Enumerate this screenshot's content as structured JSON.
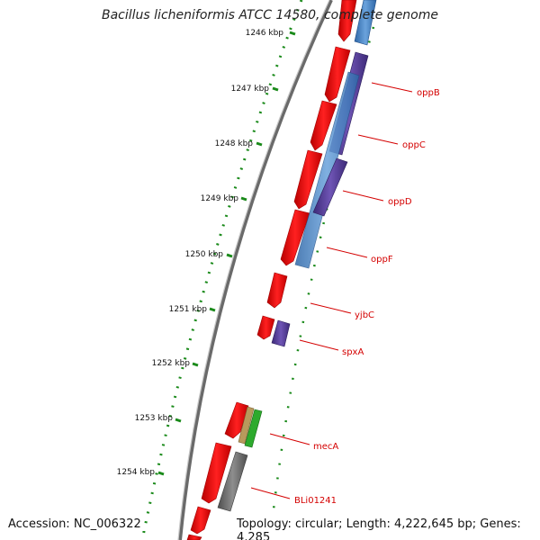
{
  "title": "Bacillus licheniformis ATCC 14580, complete genome",
  "footer": {
    "accession": "Accession: NC_006322",
    "summary": "Topology: circular; Length: 4,222,645 bp; Genes: 4,285"
  },
  "ticks": [
    "1246 kbp",
    "1247 kbp",
    "1248 kbp",
    "1249 kbp",
    "1250 kbp",
    "1251 kbp",
    "1252 kbp",
    "1253 kbp",
    "1254 kbp"
  ],
  "genes": [
    "oppB",
    "oppC",
    "oppD",
    "oppF",
    "yjbC",
    "spxA",
    "mecA",
    "BLi01241"
  ],
  "colors": {
    "cds": "#ff1a1a",
    "blue": "#4a86c8",
    "purple": "#5a3f9a",
    "green": "#2daa2d",
    "gray": "#707070",
    "backbone": "#8a8a8a",
    "tick": "#1a8a1a",
    "label": "#d40000"
  }
}
